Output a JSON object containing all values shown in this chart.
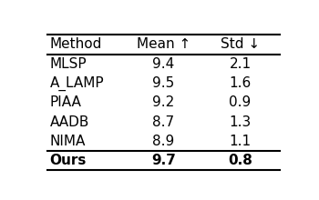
{
  "columns": [
    "Method",
    "Mean ↑",
    "Std ↓"
  ],
  "rows": [
    [
      "MLSP",
      "9.4",
      "2.1"
    ],
    [
      "A_LAMP",
      "9.5",
      "1.6"
    ],
    [
      "PIAA",
      "9.2",
      "0.9"
    ],
    [
      "AADB",
      "8.7",
      "1.3"
    ],
    [
      "NIMA",
      "8.9",
      "1.1"
    ],
    [
      "Ours",
      "9.7",
      "0.8"
    ]
  ],
  "bold_last_row": true,
  "bg_color": "#ffffff",
  "text_color": "#000000",
  "font_size": 11,
  "header_font_size": 11
}
